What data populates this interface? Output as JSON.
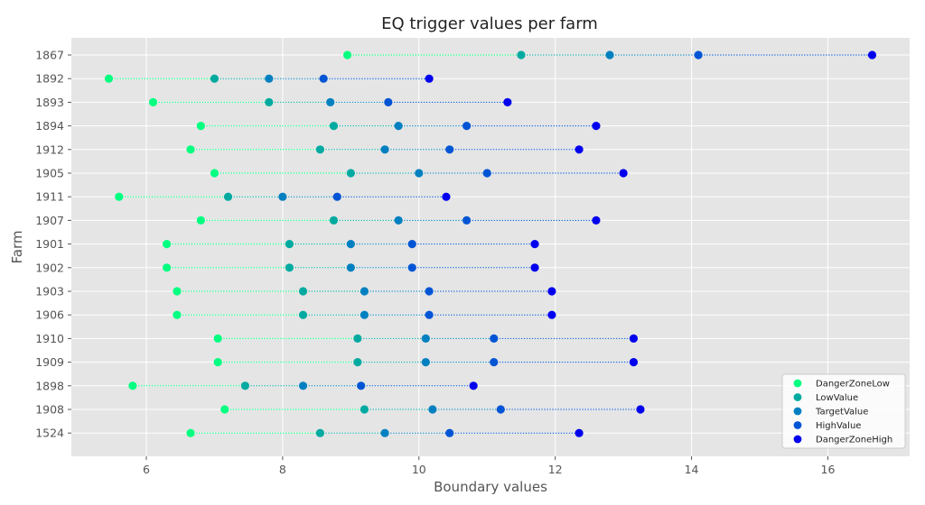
{
  "chart_data": {
    "type": "scatter",
    "title": "EQ trigger values per farm",
    "xlabel": "Boundary values",
    "ylabel": "Farm",
    "xlim": [
      4.9,
      17.2
    ],
    "xticks": [
      6,
      8,
      10,
      12,
      14,
      16
    ],
    "grid": true,
    "legend_position": "bottom-right",
    "categories": [
      "1867",
      "1892",
      "1893",
      "1894",
      "1912",
      "1905",
      "1911",
      "1907",
      "1901",
      "1902",
      "1903",
      "1906",
      "1910",
      "1909",
      "1898",
      "1908",
      "1524"
    ],
    "series": [
      {
        "name": "DangerZoneLow",
        "color": "#00ff80",
        "values": [
          8.95,
          5.45,
          6.1,
          6.8,
          6.65,
          7.0,
          5.6,
          6.8,
          6.3,
          6.3,
          6.45,
          6.45,
          7.05,
          7.05,
          5.8,
          7.15,
          6.65
        ]
      },
      {
        "name": "LowValue",
        "color": "#00aaa0",
        "values": [
          11.5,
          7.0,
          7.8,
          8.75,
          8.55,
          9.0,
          7.2,
          8.75,
          8.1,
          8.1,
          8.3,
          8.3,
          9.1,
          9.1,
          7.45,
          9.2,
          8.55
        ]
      },
      {
        "name": "TargetValue",
        "color": "#0080c0",
        "values": [
          12.8,
          7.8,
          8.7,
          9.7,
          9.5,
          10.0,
          8.0,
          9.7,
          9.0,
          9.0,
          9.2,
          9.2,
          10.1,
          10.1,
          8.3,
          10.2,
          9.5
        ]
      },
      {
        "name": "HighValue",
        "color": "#0055d5",
        "values": [
          14.1,
          8.6,
          9.55,
          10.7,
          10.45,
          11.0,
          8.8,
          10.7,
          9.9,
          9.9,
          10.15,
          10.15,
          11.1,
          11.1,
          9.15,
          11.2,
          10.45
        ]
      },
      {
        "name": "DangerZoneHigh",
        "color": "#0000ee",
        "values": [
          16.65,
          10.15,
          11.3,
          12.6,
          12.35,
          13.0,
          10.4,
          12.6,
          11.7,
          11.7,
          11.95,
          11.95,
          13.15,
          13.15,
          10.8,
          13.25,
          12.35
        ]
      }
    ]
  }
}
